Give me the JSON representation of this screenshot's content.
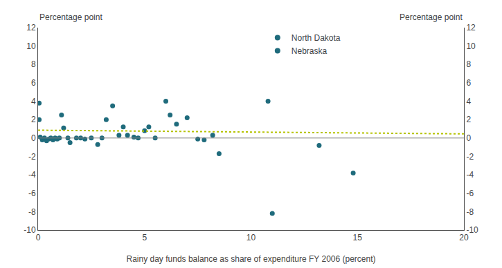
{
  "chart_data": {
    "type": "scatter",
    "xlabel": "Rainy day funds balance as share of expenditure FY 2006 (percent)",
    "ylabel": "Percentage point",
    "y2label": "Percentage point",
    "xlim": [
      0,
      20
    ],
    "xticks": [
      0,
      5,
      10,
      15,
      20
    ],
    "ylim": [
      -10,
      12
    ],
    "yticks": [
      -10,
      -8,
      -6,
      -4,
      -2,
      0,
      2,
      4,
      6,
      8,
      10,
      12
    ],
    "y2lim": [
      -10,
      12
    ],
    "y2ticks": [
      -10,
      -8,
      -6,
      -4,
      -2,
      0,
      2,
      4,
      6,
      8,
      10,
      12
    ],
    "grid": false,
    "legend": "top",
    "series": [
      {
        "type": "scatter",
        "marker": "circle",
        "color": "#1f6b7c",
        "x": [
          0.05,
          0.05,
          0.1,
          0.2,
          0.3,
          0.4,
          0.5,
          0.6,
          0.7,
          0.8,
          0.9,
          1.0,
          1.1,
          1.2,
          1.4,
          1.5,
          1.8,
          2.0,
          2.2,
          2.5,
          2.8,
          3.0,
          3.2,
          3.5,
          3.8,
          4.0,
          4.2,
          4.5,
          4.7,
          5.0,
          5.2,
          5.5,
          6.0,
          6.2,
          6.5,
          7.0,
          7.5,
          7.8,
          8.2,
          8.5,
          10.8,
          11.0,
          13.2,
          14.8
        ],
        "values": [
          3.8,
          2.0,
          0.1,
          -0.2,
          0.0,
          -0.3,
          -0.1,
          0.0,
          -0.2,
          0.0,
          -0.1,
          0.0,
          2.5,
          1.1,
          0.0,
          -0.5,
          0.0,
          0.0,
          -0.1,
          0.0,
          -0.7,
          0.0,
          2.0,
          3.5,
          0.3,
          1.2,
          0.3,
          0.1,
          0.0,
          0.8,
          1.2,
          0.0,
          4.0,
          2.5,
          1.5,
          2.2,
          -0.1,
          -0.2,
          0.3,
          -1.7,
          4.0,
          -8.2,
          -0.8,
          -3.8
        ]
      },
      {
        "type": "line",
        "line_style": "dotted",
        "color": "#b5c200",
        "x": [
          0,
          20
        ],
        "values": [
          0.85,
          0.45
        ]
      },
      {
        "type": "hline",
        "line_style": "solid",
        "color": "#808080",
        "values": [
          0
        ]
      }
    ],
    "legend_entries": [
      {
        "name": "North Dakota",
        "color": "#1f6b7c",
        "marker": "circle"
      },
      {
        "name": "Nebraska",
        "color": "#1f6b7c",
        "marker": "circle"
      }
    ]
  }
}
